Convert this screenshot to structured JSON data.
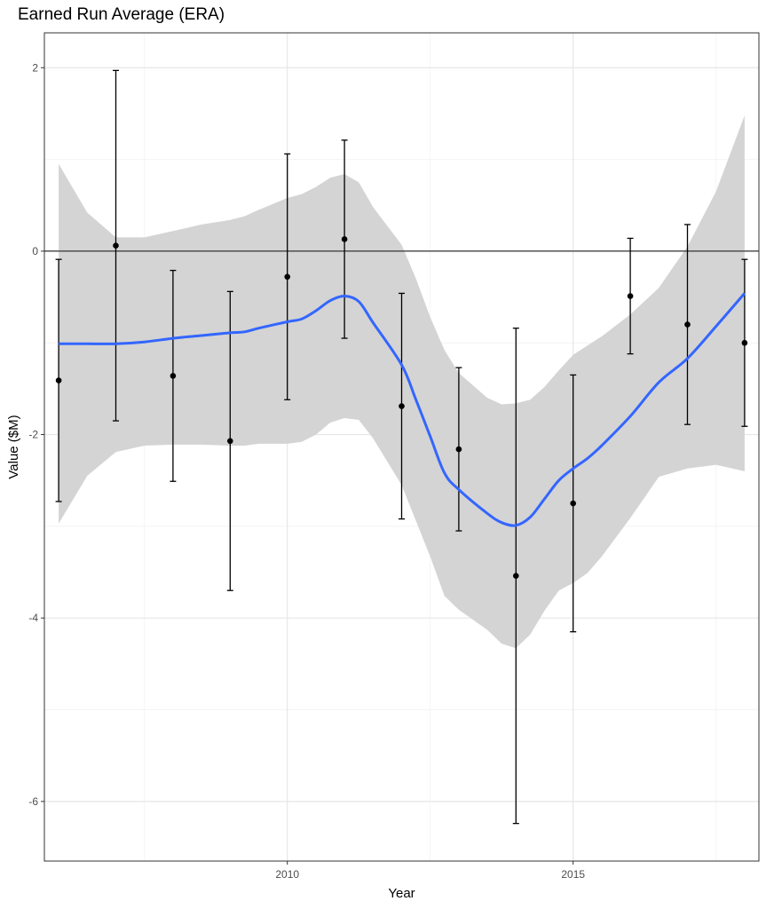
{
  "chart_data": {
    "type": "scatter",
    "title": "Earned Run Average (ERA)",
    "xlabel": "Year",
    "ylabel": "Value ($M)",
    "xlim": [
      2005.75,
      2018.25
    ],
    "ylim": [
      -6.65,
      2.38
    ],
    "x_ticks": [
      {
        "value": 2010,
        "label": "2010"
      },
      {
        "value": 2015,
        "label": "2015"
      }
    ],
    "x_minor_ticks": [
      2007.5,
      2012.5,
      2017.5
    ],
    "y_ticks": [
      {
        "value": 2,
        "label": "2"
      },
      {
        "value": 0,
        "label": "0"
      },
      {
        "value": -2,
        "label": "-2"
      },
      {
        "value": -4,
        "label": "-4"
      },
      {
        "value": -6,
        "label": "-6"
      }
    ],
    "y_minor_ticks": [
      1,
      -1,
      -3,
      -5
    ],
    "grid": true,
    "reference_line_y": 0,
    "points": [
      {
        "x": 2006,
        "y": -1.41,
        "lower": -2.73,
        "upper": -0.09
      },
      {
        "x": 2007,
        "y": 0.06,
        "lower": -1.85,
        "upper": 1.97
      },
      {
        "x": 2008,
        "y": -1.36,
        "lower": -2.51,
        "upper": -0.21
      },
      {
        "x": 2009,
        "y": -2.07,
        "lower": -3.7,
        "upper": -0.44
      },
      {
        "x": 2010,
        "y": -0.28,
        "lower": -1.62,
        "upper": 1.06
      },
      {
        "x": 2011,
        "y": 0.13,
        "lower": -0.95,
        "upper": 1.21
      },
      {
        "x": 2012,
        "y": -1.69,
        "lower": -2.92,
        "upper": -0.46
      },
      {
        "x": 2013,
        "y": -2.16,
        "lower": -3.05,
        "upper": -1.27
      },
      {
        "x": 2014,
        "y": -3.54,
        "lower": -6.24,
        "upper": -0.84
      },
      {
        "x": 2015,
        "y": -2.75,
        "lower": -4.15,
        "upper": -1.35
      },
      {
        "x": 2016,
        "y": -0.49,
        "lower": -1.12,
        "upper": 0.14
      },
      {
        "x": 2017,
        "y": -0.8,
        "lower": -1.89,
        "upper": 0.29
      },
      {
        "x": 2018,
        "y": -1.0,
        "lower": -1.91,
        "upper": -0.09
      }
    ],
    "smooth": {
      "x": [
        2006,
        2006.5,
        2007,
        2007.5,
        2008,
        2008.5,
        2009,
        2009.25,
        2009.5,
        2010,
        2010.25,
        2010.5,
        2010.75,
        2011,
        2011.25,
        2011.5,
        2012,
        2012.25,
        2012.5,
        2012.75,
        2013,
        2013.5,
        2013.75,
        2014,
        2014.25,
        2014.5,
        2014.75,
        2015,
        2015.25,
        2015.5,
        2016,
        2016.5,
        2017,
        2017.5,
        2018
      ],
      "fit": [
        -1.01,
        -1.01,
        -1.01,
        -0.99,
        -0.95,
        -0.92,
        -0.89,
        -0.88,
        -0.84,
        -0.77,
        -0.74,
        -0.65,
        -0.54,
        -0.49,
        -0.55,
        -0.78,
        -1.24,
        -1.62,
        -2.02,
        -2.42,
        -2.6,
        -2.86,
        -2.96,
        -2.99,
        -2.9,
        -2.7,
        -2.5,
        -2.37,
        -2.26,
        -2.12,
        -1.8,
        -1.43,
        -1.17,
        -0.82,
        -0.46
      ],
      "upper": [
        0.95,
        0.42,
        0.15,
        0.15,
        0.22,
        0.29,
        0.34,
        0.38,
        0.45,
        0.58,
        0.62,
        0.7,
        0.8,
        0.84,
        0.75,
        0.48,
        0.07,
        -0.3,
        -0.72,
        -1.08,
        -1.33,
        -1.6,
        -1.67,
        -1.66,
        -1.62,
        -1.48,
        -1.3,
        -1.13,
        -1.03,
        -0.93,
        -0.69,
        -0.4,
        0.05,
        0.65,
        1.48
      ],
      "lower": [
        -2.97,
        -2.45,
        -2.19,
        -2.12,
        -2.11,
        -2.11,
        -2.12,
        -2.12,
        -2.1,
        -2.1,
        -2.08,
        -2.0,
        -1.87,
        -1.82,
        -1.84,
        -2.04,
        -2.55,
        -2.94,
        -3.33,
        -3.76,
        -3.91,
        -4.13,
        -4.28,
        -4.33,
        -4.18,
        -3.92,
        -3.7,
        -3.62,
        -3.51,
        -3.33,
        -2.91,
        -2.46,
        -2.37,
        -2.33,
        -2.4
      ]
    },
    "colors": {
      "ribbon": "#d4d4d4",
      "smooth_line": "#3366ff",
      "points": "#000000",
      "errorbars": "#000000",
      "grid_major": "#e6e6e6",
      "grid_minor": "#f4f4f4",
      "panel_border": "#333333"
    }
  }
}
